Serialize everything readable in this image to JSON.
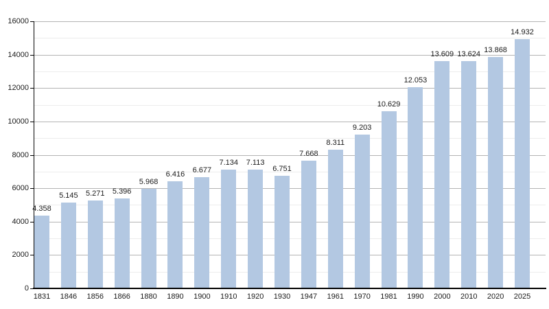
{
  "chart_data": {
    "type": "bar",
    "title": "",
    "xlabel": "",
    "ylabel": "",
    "categories": [
      "1831",
      "1846",
      "1856",
      "1866",
      "1880",
      "1890",
      "1900",
      "1910",
      "1920",
      "1930",
      "1947",
      "1961",
      "1970",
      "1981",
      "1990",
      "2000",
      "2010",
      "2020",
      "2025"
    ],
    "values": [
      4358,
      5145,
      5271,
      5396,
      5968,
      6416,
      6677,
      7134,
      7113,
      6751,
      7668,
      8311,
      9203,
      10629,
      12053,
      13609,
      13624,
      13868,
      14932
    ],
    "bar_labels": [
      "4.358",
      "5.145",
      "5.271",
      "5.396",
      "5.968",
      "6.416",
      "6.677",
      "7.134",
      "7.113",
      "6.751",
      "7.668",
      "8.311",
      "9.203",
      "10.629",
      "12.053",
      "13.609",
      "13.624",
      "13.868",
      "14.932"
    ],
    "ylim": [
      0,
      16000
    ],
    "y_major_ticks": [
      0,
      2000,
      4000,
      6000,
      8000,
      10000,
      12000,
      14000,
      16000
    ],
    "y_major_tick_labels": [
      "0",
      "2000",
      "4000",
      "6000",
      "8000",
      "10000",
      "12000",
      "14000",
      "16000"
    ],
    "y_minor_step": 1000,
    "grid": true,
    "legend": "none",
    "colors": {
      "bar_fill": "#b3c8e2",
      "major_grid": "#b4b4b4",
      "minor_grid": "#ececec",
      "axis": "#000000",
      "label_text": "#1a1a1a",
      "background": "#ffffff"
    }
  }
}
